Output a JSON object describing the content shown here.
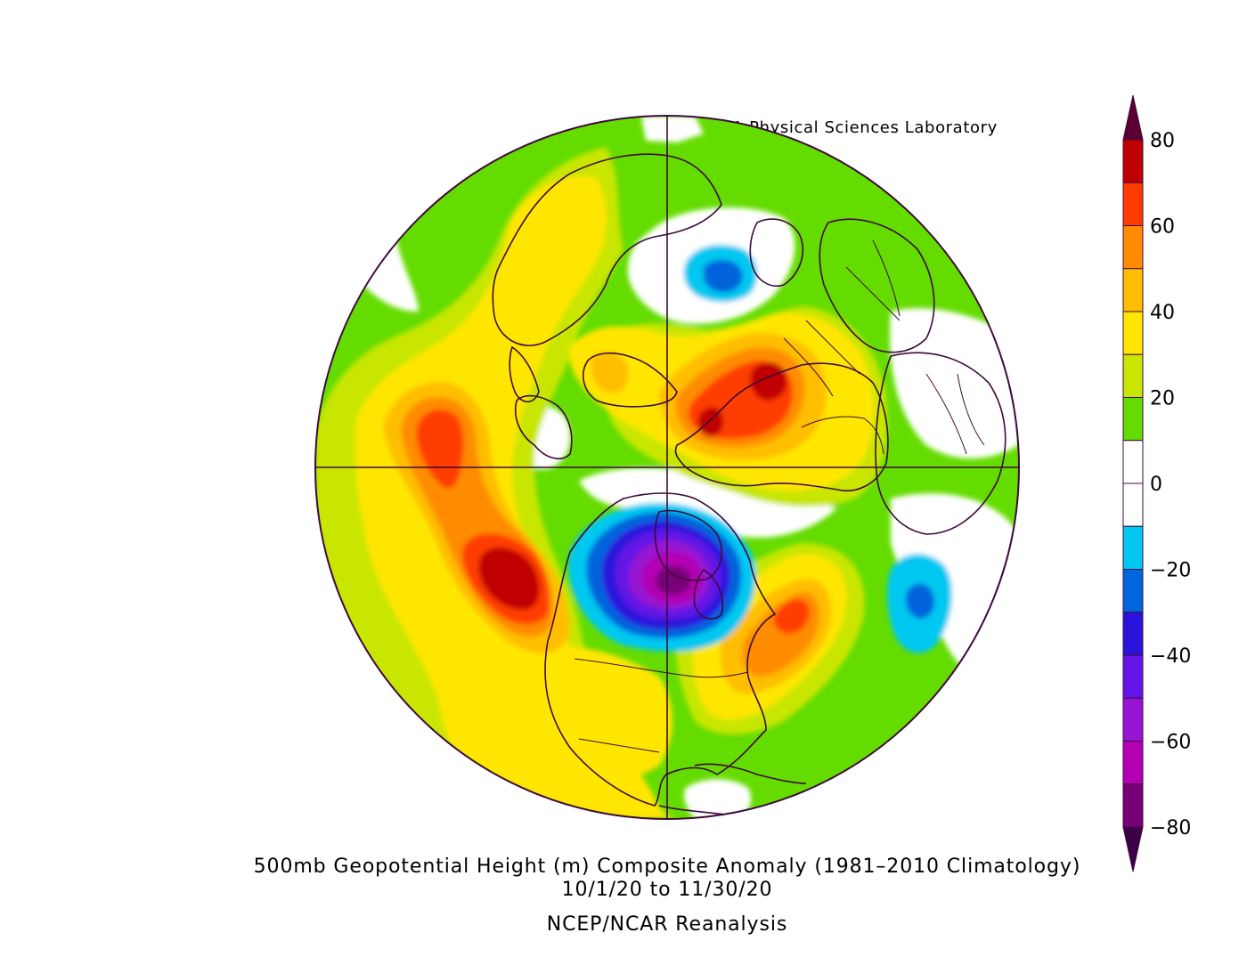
{
  "credit": "NOAA Physical Sciences Laboratory",
  "caption": {
    "line1": "500mb Geopotential Height (m) Composite Anomaly (1981–2010 Climatology)",
    "line2": "10/1/20  to 11/30/20",
    "line3": "NCEP/NCAR Reanalysis"
  },
  "colorbar": {
    "labels": [
      "80",
      "60",
      "40",
      "20",
      "0",
      "−20",
      "−40",
      "−60",
      "−80"
    ],
    "label_values": [
      80,
      60,
      40,
      20,
      0,
      -20,
      -40,
      -60,
      -80
    ],
    "bins_top_to_bottom": [
      {
        "range": "> 80",
        "color": "#5c0032"
      },
      {
        "range": "70 to 80",
        "color": "#c00000"
      },
      {
        "range": "60 to 70",
        "color": "#ff3c00"
      },
      {
        "range": "50 to 60",
        "color": "#ff8c00"
      },
      {
        "range": "40 to 50",
        "color": "#ffbe00"
      },
      {
        "range": "30 to 40",
        "color": "#ffe600"
      },
      {
        "range": "20 to 30",
        "color": "#c8e600"
      },
      {
        "range": "10 to 20",
        "color": "#64dc00"
      },
      {
        "range": "0 to 10",
        "color": "#ffffff"
      },
      {
        "range": "-10 to 0",
        "color": "#ffffff"
      },
      {
        "range": "-20 to -10",
        "color": "#00c8f0"
      },
      {
        "range": "-30 to -20",
        "color": "#0064dc"
      },
      {
        "range": "-40 to -30",
        "color": "#2a14dc"
      },
      {
        "range": "-50 to -40",
        "color": "#6414e6"
      },
      {
        "range": "-60 to -50",
        "color": "#9614d2"
      },
      {
        "range": "-70 to -60",
        "color": "#b400b4"
      },
      {
        "range": "-80 to -70",
        "color": "#780078"
      },
      {
        "range": "< -80",
        "color": "#3c0046"
      }
    ]
  },
  "map": {
    "projection": "north-polar-stereographic",
    "center": "North Pole",
    "gridlines": "meridian cross",
    "outline_color": "#3c0a3c",
    "anomalies": [
      {
        "region": "Siberia",
        "sign": "positive",
        "max_level": 80
      },
      {
        "region": "North Pacific / Aleutians",
        "sign": "positive",
        "max_level": 80
      },
      {
        "region": "Bering Strait",
        "sign": "positive",
        "max_level": 70
      },
      {
        "region": "Eastern North America / Western Atlantic",
        "sign": "positive",
        "max_level": 70
      },
      {
        "region": "Greenland / Canadian Archipelago",
        "sign": "negative",
        "min_level": -80
      },
      {
        "region": "Scandinavia / North Atlantic",
        "sign": "negative",
        "min_level": -30
      },
      {
        "region": "Eastern North Atlantic / Iberia",
        "sign": "negative",
        "min_level": -30
      },
      {
        "region": "Central North Pacific",
        "sign": "neutral",
        "min_level": 0
      }
    ]
  }
}
